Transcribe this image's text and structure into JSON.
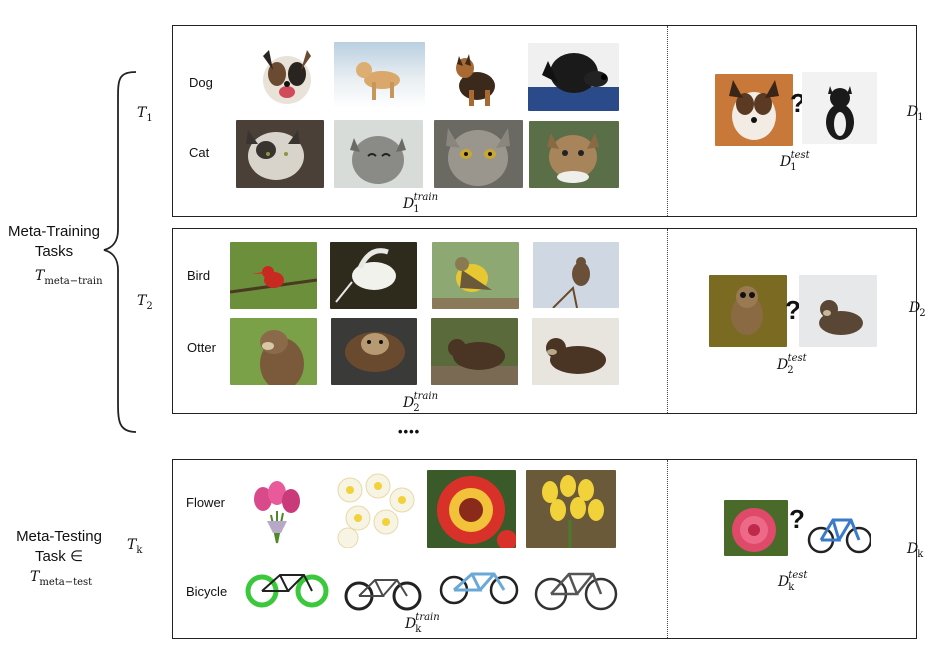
{
  "meta_training": {
    "label_line1": "Meta-Training",
    "label_line2": "Tasks",
    "symbol": "T",
    "symbol_sub": "meta−train"
  },
  "meta_testing": {
    "label_line1": "Meta-Testing",
    "label_line2": "Task ∈",
    "symbol": "T",
    "symbol_sub": "meta−test"
  },
  "ellipsis": "••••",
  "tasks": [
    {
      "task_symbol": "T",
      "task_sub": "1",
      "classes": [
        "Dog",
        "Cat"
      ],
      "train_label": "D",
      "train_sub": "1",
      "train_sup": "train",
      "test_label": "D",
      "test_sub": "1",
      "test_sup": "test",
      "dataset_label": "D",
      "dataset_sub": "1",
      "question": "?"
    },
    {
      "task_symbol": "T",
      "task_sub": "2",
      "classes": [
        "Bird",
        "Otter"
      ],
      "train_label": "D",
      "train_sub": "2",
      "train_sup": "train",
      "test_label": "D",
      "test_sub": "2",
      "test_sup": "test",
      "dataset_label": "D",
      "dataset_sub": "2",
      "question": "?"
    },
    {
      "task_symbol": "T",
      "task_sub": "k",
      "classes": [
        "Flower",
        "Bicycle"
      ],
      "train_label": "D",
      "train_sub": "k",
      "train_sup": "train",
      "test_label": "D",
      "test_sub": "k",
      "test_sup": "test",
      "dataset_label": "D",
      "dataset_sub": "k",
      "question": "?"
    }
  ],
  "colors": {
    "dog_tan": "#b8864e",
    "cat_gray": "#8a8a88",
    "bird_green": "#6b8f3a",
    "otter_brown": "#5a4634",
    "flower_red": "#d8312a",
    "flower_yellow": "#f2d23a",
    "bicycle_green": "#3cc83c"
  }
}
